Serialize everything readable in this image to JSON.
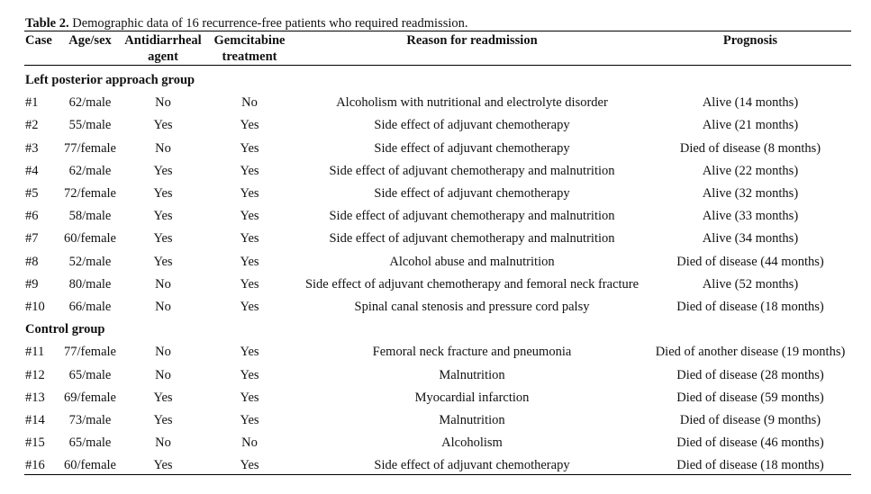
{
  "title": {
    "label": "Table 2.",
    "text": "Demographic data of 16 recurrence-free patients who required readmission."
  },
  "table": {
    "headers": [
      "Case",
      "Age/sex",
      "Antidiarrheal agent",
      "Gemcitabine treatment",
      "Reason for readmission",
      "Prognosis"
    ],
    "groups": [
      {
        "name": "Left posterior approach group",
        "rows": [
          [
            "#1",
            "62/male",
            "No",
            "No",
            "Alcoholism with nutritional and electrolyte disorder",
            "Alive (14 months)"
          ],
          [
            "#2",
            "55/male",
            "Yes",
            "Yes",
            "Side effect of adjuvant chemotherapy",
            "Alive (21 months)"
          ],
          [
            "#3",
            "77/female",
            "No",
            "Yes",
            "Side effect of adjuvant chemotherapy",
            "Died of disease (8 months)"
          ],
          [
            "#4",
            "62/male",
            "Yes",
            "Yes",
            "Side effect of adjuvant chemotherapy and malnutrition",
            "Alive (22 months)"
          ],
          [
            "#5",
            "72/female",
            "Yes",
            "Yes",
            "Side effect of adjuvant chemotherapy",
            "Alive (32 months)"
          ],
          [
            "#6",
            "58/male",
            "Yes",
            "Yes",
            "Side effect of adjuvant chemotherapy and malnutrition",
            "Alive (33 months)"
          ],
          [
            "#7",
            "60/female",
            "Yes",
            "Yes",
            "Side effect of adjuvant chemotherapy and malnutrition",
            "Alive (34 months)"
          ],
          [
            "#8",
            "52/male",
            "Yes",
            "Yes",
            "Alcohol abuse and malnutrition",
            "Died of disease (44 months)"
          ],
          [
            "#9",
            "80/male",
            "No",
            "Yes",
            "Side effect of adjuvant chemotherapy and femoral neck fracture",
            "Alive (52 months)"
          ],
          [
            "#10",
            "66/male",
            "No",
            "Yes",
            "Spinal canal stenosis and pressure cord palsy",
            "Died of disease (18 months)"
          ]
        ]
      },
      {
        "name": "Control group",
        "rows": [
          [
            "#11",
            "77/female",
            "No",
            "Yes",
            "Femoral neck fracture and pneumonia",
            "Died of another disease (19 months)"
          ],
          [
            "#12",
            "65/male",
            "No",
            "Yes",
            "Malnutrition",
            "Died of disease (28 months)"
          ],
          [
            "#13",
            "69/female",
            "Yes",
            "Yes",
            "Myocardial infarction",
            "Died of disease (59 months)"
          ],
          [
            "#14",
            "73/male",
            "Yes",
            "Yes",
            "Malnutrition",
            "Died of disease (9 months)"
          ],
          [
            "#15",
            "65/male",
            "No",
            "No",
            "Alcoholism",
            "Died of disease (46 months)"
          ],
          [
            "#16",
            "60/female",
            "Yes",
            "Yes",
            "Side effect of adjuvant chemotherapy",
            "Died of disease (18 months)"
          ]
        ]
      }
    ]
  }
}
